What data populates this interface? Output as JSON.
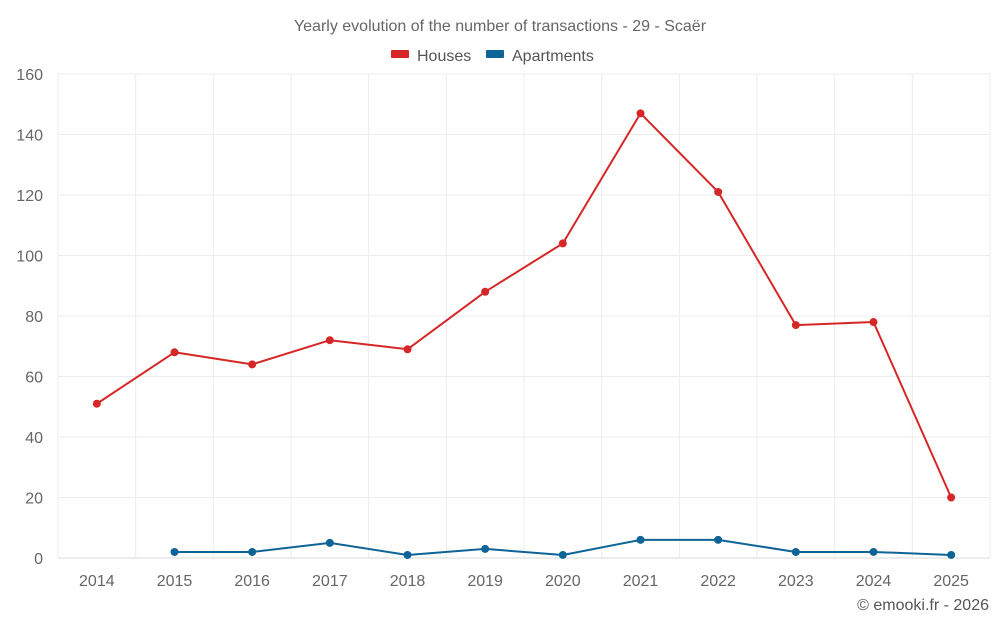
{
  "chart_data": {
    "type": "line",
    "title": "Yearly evolution of the number of transactions - 29 - Scaër",
    "xlabel": "",
    "ylabel": "",
    "categories": [
      "2014",
      "2015",
      "2016",
      "2017",
      "2018",
      "2019",
      "2020",
      "2021",
      "2022",
      "2023",
      "2024",
      "2025"
    ],
    "ylim": [
      0,
      160
    ],
    "yticks": [
      "0",
      "20",
      "40",
      "60",
      "80",
      "100",
      "120",
      "140",
      "160"
    ],
    "grid": true,
    "legend_position": "top-center",
    "series": [
      {
        "name": "Houses",
        "color": "#d62728",
        "values": [
          51,
          68,
          64,
          72,
          69,
          88,
          104,
          147,
          121,
          77,
          78,
          20
        ]
      },
      {
        "name": "Apartments",
        "color": "#0e6496",
        "values": [
          null,
          2,
          2,
          5,
          1,
          3,
          1,
          6,
          6,
          2,
          2,
          1
        ]
      }
    ]
  },
  "credit": "© emooki.fr - 2026"
}
